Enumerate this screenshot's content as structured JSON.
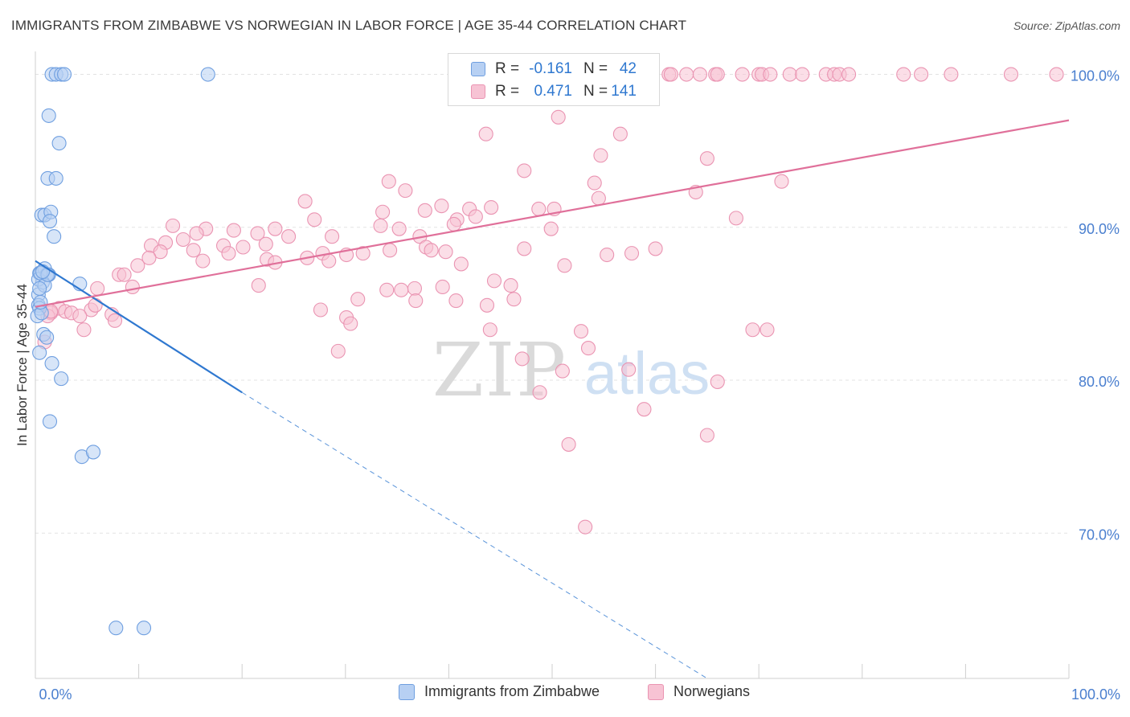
{
  "header": {
    "title": "IMMIGRANTS FROM ZIMBABWE VS NORWEGIAN IN LABOR FORCE | AGE 35-44 CORRELATION CHART",
    "source": "Source: ZipAtlas.com"
  },
  "watermark": {
    "zip": "ZIP",
    "atlas": "atlas"
  },
  "stats_box": {
    "rows": [
      {
        "r_label": "R =",
        "r_value": "-0.161",
        "n_label": "N =",
        "n_value": "42",
        "color": "#4a86d8"
      },
      {
        "r_label": "R =",
        "r_value": "0.471",
        "n_label": "N =",
        "n_value": "141",
        "color": "#e0709a"
      }
    ]
  },
  "legend": {
    "items": [
      {
        "label": "Immigrants from Zimbabwe"
      },
      {
        "label": "Norwegians"
      }
    ]
  },
  "colors": {
    "blue_fill": "#b7d0f3",
    "blue_stroke": "#6f9fe0",
    "blue_line": "#2f78d0",
    "pink_fill": "#f7c3d4",
    "pink_stroke": "#ea94b2",
    "pink_line": "#e0709a",
    "axis_label": "#4a7fcf",
    "grid": "#e3e3e3"
  },
  "chart_data": {
    "type": "scatter",
    "title": "IMMIGRANTS FROM ZIMBABWE VS NORWEGIAN IN LABOR FORCE | AGE 35-44 CORRELATION CHART",
    "xlabel": "",
    "ylabel": "In Labor Force | Age 35-44",
    "xlim": [
      0,
      100
    ],
    "ylim": [
      60.5,
      101.5
    ],
    "x_ticks": [
      0,
      10,
      20,
      30,
      40,
      50,
      60,
      70,
      80,
      90,
      100
    ],
    "x_tick_labels": [
      {
        "value": 0,
        "label": "0.0%"
      },
      {
        "value": 100,
        "label": "100.0%"
      }
    ],
    "y_ticks": [
      {
        "value": 100,
        "label": "100.0%"
      },
      {
        "value": 90,
        "label": "90.0%"
      },
      {
        "value": 80,
        "label": "80.0%"
      },
      {
        "value": 70,
        "label": "70.0%"
      }
    ],
    "grid": true,
    "series": [
      {
        "name": "Immigrants from Zimbabwe",
        "color": "#4a86d8",
        "points": [
          [
            1.6,
            100
          ],
          [
            2.0,
            100
          ],
          [
            2.5,
            100
          ],
          [
            2.8,
            100
          ],
          [
            16.7,
            100
          ],
          [
            1.3,
            97.3
          ],
          [
            2.3,
            95.5
          ],
          [
            1.2,
            93.2
          ],
          [
            2.0,
            93.2
          ],
          [
            0.6,
            90.8
          ],
          [
            0.9,
            90.8
          ],
          [
            1.5,
            91.0
          ],
          [
            1.4,
            90.4
          ],
          [
            1.8,
            89.4
          ],
          [
            0.4,
            87.0
          ],
          [
            0.9,
            87.3
          ],
          [
            1.1,
            86.9
          ],
          [
            1.3,
            86.9
          ],
          [
            0.7,
            86.4
          ],
          [
            0.3,
            86.6
          ],
          [
            4.3,
            86.3
          ],
          [
            0.3,
            85.6
          ],
          [
            0.3,
            84.9
          ],
          [
            0.4,
            84.7
          ],
          [
            0.2,
            84.2
          ],
          [
            0.8,
            83.0
          ],
          [
            1.1,
            82.8
          ],
          [
            0.4,
            81.8
          ],
          [
            1.6,
            81.1
          ],
          [
            2.5,
            80.1
          ],
          [
            1.4,
            77.3
          ],
          [
            4.5,
            75.0
          ],
          [
            5.6,
            75.3
          ],
          [
            7.8,
            63.8
          ],
          [
            10.5,
            63.8
          ],
          [
            0.5,
            87.0
          ],
          [
            0.6,
            84.4
          ],
          [
            0.9,
            86.2
          ],
          [
            1.2,
            86.9
          ],
          [
            0.5,
            85.1
          ],
          [
            0.7,
            87.1
          ],
          [
            0.4,
            86.0
          ]
        ],
        "trend": {
          "from": [
            0,
            87.8
          ],
          "to": [
            20,
            79.2
          ],
          "dashed_to": [
            65,
            60.5
          ]
        }
      },
      {
        "name": "Norwegians",
        "color": "#e0709a",
        "points": [
          [
            61.3,
            100
          ],
          [
            61.5,
            100
          ],
          [
            63.0,
            100
          ],
          [
            64.3,
            100
          ],
          [
            65.8,
            100
          ],
          [
            66.0,
            100
          ],
          [
            68.4,
            100
          ],
          [
            70.0,
            100
          ],
          [
            70.3,
            100
          ],
          [
            71.1,
            100
          ],
          [
            73.0,
            100
          ],
          [
            74.2,
            100
          ],
          [
            76.5,
            100
          ],
          [
            77.3,
            100
          ],
          [
            77.8,
            100
          ],
          [
            78.7,
            100
          ],
          [
            84.0,
            100
          ],
          [
            85.7,
            100
          ],
          [
            88.6,
            100
          ],
          [
            94.4,
            100
          ],
          [
            98.8,
            100
          ],
          [
            52.4,
            100
          ],
          [
            50.6,
            97.2
          ],
          [
            43.6,
            96.1
          ],
          [
            56.6,
            96.1
          ],
          [
            54.7,
            94.7
          ],
          [
            65.0,
            94.5
          ],
          [
            47.3,
            93.7
          ],
          [
            54.1,
            92.9
          ],
          [
            72.2,
            93.0
          ],
          [
            34.2,
            93.0
          ],
          [
            35.8,
            92.4
          ],
          [
            63.9,
            92.3
          ],
          [
            54.5,
            91.9
          ],
          [
            26.1,
            91.7
          ],
          [
            39.3,
            91.4
          ],
          [
            42.0,
            91.2
          ],
          [
            33.6,
            91.0
          ],
          [
            37.7,
            91.1
          ],
          [
            44.1,
            91.3
          ],
          [
            48.7,
            91.2
          ],
          [
            50.2,
            91.2
          ],
          [
            42.6,
            90.7
          ],
          [
            40.8,
            90.5
          ],
          [
            27.0,
            90.5
          ],
          [
            40.5,
            90.2
          ],
          [
            67.8,
            90.6
          ],
          [
            33.4,
            90.1
          ],
          [
            35.2,
            89.9
          ],
          [
            49.9,
            89.9
          ],
          [
            23.2,
            89.9
          ],
          [
            13.3,
            90.1
          ],
          [
            16.5,
            89.9
          ],
          [
            19.2,
            89.8
          ],
          [
            21.5,
            89.6
          ],
          [
            15.6,
            89.6
          ],
          [
            24.5,
            89.4
          ],
          [
            28.7,
            89.4
          ],
          [
            37.2,
            89.4
          ],
          [
            14.3,
            89.2
          ],
          [
            12.6,
            89.0
          ],
          [
            18.2,
            88.8
          ],
          [
            20.1,
            88.7
          ],
          [
            22.3,
            88.9
          ],
          [
            37.8,
            88.7
          ],
          [
            11.2,
            88.8
          ],
          [
            12.1,
            88.4
          ],
          [
            15.3,
            88.5
          ],
          [
            18.7,
            88.3
          ],
          [
            27.8,
            88.3
          ],
          [
            30.1,
            88.2
          ],
          [
            31.7,
            88.3
          ],
          [
            34.3,
            88.5
          ],
          [
            38.3,
            88.5
          ],
          [
            39.7,
            88.4
          ],
          [
            47.3,
            88.6
          ],
          [
            55.3,
            88.2
          ],
          [
            57.7,
            88.3
          ],
          [
            60.0,
            88.6
          ],
          [
            11.0,
            88.0
          ],
          [
            16.2,
            87.8
          ],
          [
            22.4,
            87.9
          ],
          [
            26.3,
            88.0
          ],
          [
            28.4,
            87.8
          ],
          [
            9.9,
            87.5
          ],
          [
            23.2,
            87.7
          ],
          [
            41.2,
            87.6
          ],
          [
            51.2,
            87.5
          ],
          [
            8.1,
            86.9
          ],
          [
            8.6,
            86.9
          ],
          [
            9.4,
            86.1
          ],
          [
            6.0,
            86.0
          ],
          [
            21.6,
            86.2
          ],
          [
            34.0,
            85.9
          ],
          [
            35.4,
            85.9
          ],
          [
            36.7,
            86.0
          ],
          [
            39.4,
            86.1
          ],
          [
            44.4,
            86.5
          ],
          [
            46.0,
            86.2
          ],
          [
            40.7,
            85.2
          ],
          [
            46.3,
            85.3
          ],
          [
            31.2,
            85.3
          ],
          [
            36.8,
            85.2
          ],
          [
            43.7,
            84.9
          ],
          [
            5.4,
            84.6
          ],
          [
            5.8,
            84.9
          ],
          [
            2.3,
            84.7
          ],
          [
            2.9,
            84.5
          ],
          [
            3.5,
            84.4
          ],
          [
            1.5,
            84.4
          ],
          [
            1.2,
            84.2
          ],
          [
            4.3,
            84.2
          ],
          [
            7.4,
            84.3
          ],
          [
            7.7,
            83.9
          ],
          [
            27.6,
            84.6
          ],
          [
            30.1,
            84.1
          ],
          [
            30.5,
            83.7
          ],
          [
            4.7,
            83.3
          ],
          [
            44.0,
            83.3
          ],
          [
            69.4,
            83.3
          ],
          [
            70.8,
            83.3
          ],
          [
            52.8,
            83.2
          ],
          [
            53.5,
            82.1
          ],
          [
            29.3,
            81.9
          ],
          [
            47.1,
            81.4
          ],
          [
            51.0,
            80.6
          ],
          [
            57.4,
            80.7
          ],
          [
            66.0,
            79.9
          ],
          [
            48.8,
            79.2
          ],
          [
            58.9,
            78.1
          ],
          [
            65.0,
            76.4
          ],
          [
            51.6,
            75.8
          ],
          [
            53.2,
            70.4
          ],
          [
            0.9,
            82.5
          ],
          [
            1.5,
            84.5
          ]
        ],
        "trend": {
          "from": [
            0,
            84.8
          ],
          "to": [
            100,
            97.0
          ]
        }
      }
    ]
  }
}
